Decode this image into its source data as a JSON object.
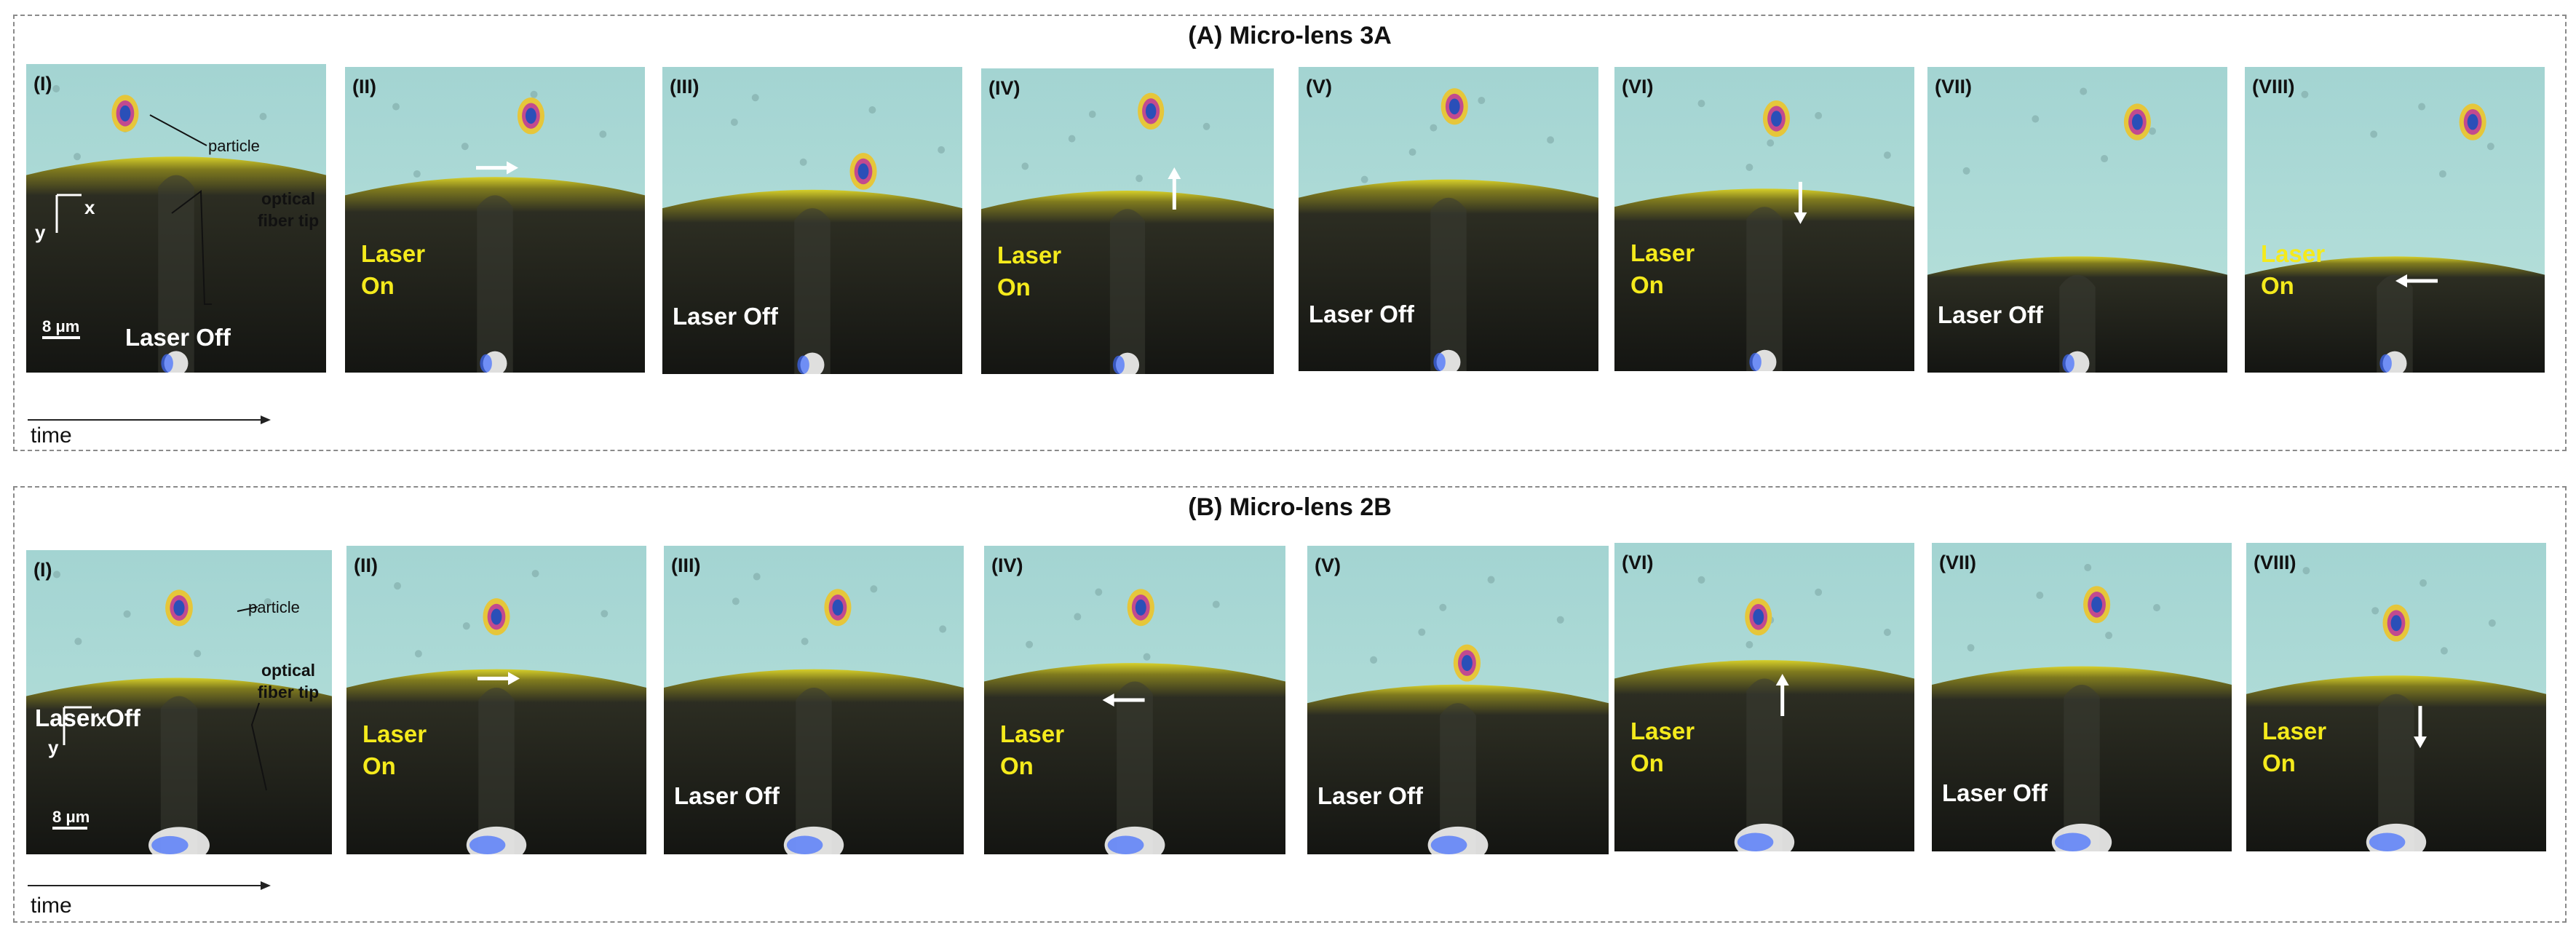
{
  "panels": [
    {
      "title": "(A) Micro-lens 3A",
      "time_label": "time",
      "frames": [
        {
          "roman": "(I)",
          "laser": "Laser Off",
          "state": "off"
        },
        {
          "roman": "(II)",
          "laser": "Laser On",
          "state": "on",
          "arrow": "right"
        },
        {
          "roman": "(III)",
          "laser": "Laser Off",
          "state": "off"
        },
        {
          "roman": "(IV)",
          "laser": "Laser On",
          "state": "on",
          "arrow": "up"
        },
        {
          "roman": "(V)",
          "laser": "Laser Off",
          "state": "off"
        },
        {
          "roman": "(VI)",
          "laser": "Laser On",
          "state": "on",
          "arrow": "down"
        },
        {
          "roman": "(VII)",
          "laser": "Laser Off",
          "state": "off"
        },
        {
          "roman": "(VIII)",
          "laser": "Laser On",
          "state": "on",
          "arrow": "left"
        }
      ],
      "annotations": {
        "particle": "particle",
        "fiber_tip": "optical fiber tip",
        "axis_x": "x",
        "axis_y": "y",
        "scale": "8 μm"
      }
    },
    {
      "title": "(B) Micro-lens 2B",
      "time_label": "time",
      "frames": [
        {
          "roman": "(I)",
          "laser": "Laser Off",
          "state": "off"
        },
        {
          "roman": "(II)",
          "laser": "Laser On",
          "state": "on",
          "arrow": "right"
        },
        {
          "roman": "(III)",
          "laser": "Laser Off",
          "state": "off"
        },
        {
          "roman": "(IV)",
          "laser": "Laser On",
          "state": "on",
          "arrow": "left"
        },
        {
          "roman": "(V)",
          "laser": "Laser Off",
          "state": "off"
        },
        {
          "roman": "(VI)",
          "laser": "Laser On",
          "state": "on",
          "arrow": "up"
        },
        {
          "roman": "(VII)",
          "laser": "Laser Off",
          "state": "off"
        },
        {
          "roman": "(VIII)",
          "laser": "Laser On",
          "state": "on",
          "arrow": "down"
        }
      ],
      "annotations": {
        "particle": "particle",
        "fiber_tip": "optical fiber tip",
        "axis_x": "x",
        "axis_y": "y",
        "scale": "8 μm"
      }
    }
  ],
  "colors": {
    "laser_on_text": "#f4ea1c",
    "laser_off_text": "#ffffff",
    "medium": "#a9d8d6",
    "fiber_edge": "#c9c22a",
    "fiber_dark": "#1b1c1a"
  }
}
